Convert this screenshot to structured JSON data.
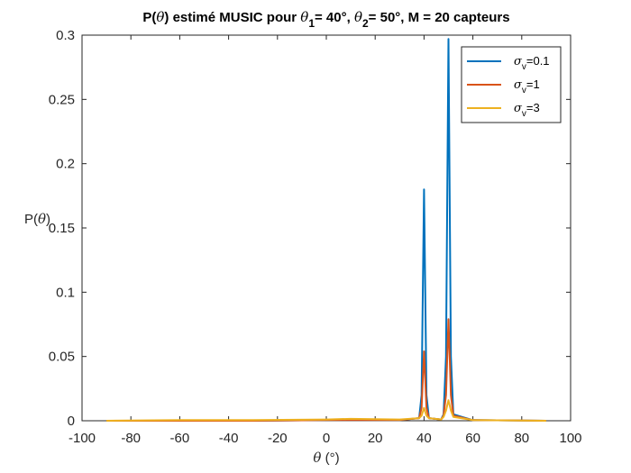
{
  "chart_data": {
    "type": "line",
    "title_parts": {
      "a": "P(",
      "b": "θ",
      "c": ") estimé MUSIC pour ",
      "d": "θ",
      "e": "1",
      "f": "= 40°, ",
      "g": "θ",
      "h": "2",
      "i": "= 50°, M = 20 capteurs"
    },
    "xlabel_parts": {
      "sym": "θ",
      "unit": " (°)"
    },
    "ylabel_parts": {
      "pre": "P(",
      "sym": "θ",
      "post": ")"
    },
    "xlim": [
      -100,
      100
    ],
    "ylim": [
      0,
      0.3
    ],
    "xticks": [
      -100,
      -80,
      -60,
      -40,
      -20,
      0,
      20,
      40,
      60,
      80,
      100
    ],
    "yticks": [
      0,
      0.05,
      0.1,
      0.15,
      0.2,
      0.25,
      0.3
    ],
    "xtick_labels": [
      "-100",
      "-80",
      "-60",
      "-40",
      "-20",
      "0",
      "20",
      "40",
      "60",
      "80",
      "100"
    ],
    "ytick_labels": [
      "0",
      "0.05",
      "0.1",
      "0.15",
      "0.2",
      "0.25",
      "0.3"
    ],
    "legend_position": "top-right",
    "grid": false,
    "series": [
      {
        "name_sym": "σ",
        "name_sub": "v",
        "name_value": "=0.1",
        "color": "#0072BD",
        "x": [
          -90,
          -60,
          -30,
          0,
          30,
          38,
          39,
          40,
          41,
          42,
          47,
          48,
          49,
          50,
          51,
          52,
          60,
          90
        ],
        "y": [
          0,
          0,
          0,
          0.0005,
          0.0005,
          0.002,
          0.02,
          0.18,
          0.02,
          0.002,
          0.001,
          0.005,
          0.05,
          0.297,
          0.05,
          0.005,
          0.0005,
          0
        ]
      },
      {
        "name_sym": "σ",
        "name_sub": "v",
        "name_value": "=1",
        "color": "#D95319",
        "x": [
          -90,
          -60,
          -30,
          0,
          30,
          38,
          39,
          40,
          41,
          42,
          47,
          48,
          49,
          50,
          51,
          52,
          60,
          90
        ],
        "y": [
          0,
          0,
          0,
          0.0005,
          0.0005,
          0.002,
          0.01,
          0.054,
          0.01,
          0.002,
          0.001,
          0.004,
          0.02,
          0.079,
          0.02,
          0.004,
          0.0005,
          0
        ]
      },
      {
        "name_sym": "σ",
        "name_sub": "v",
        "name_value": "=3",
        "color": "#EDB120",
        "x": [
          -90,
          -60,
          -30,
          0,
          10,
          30,
          38,
          39,
          40,
          41,
          42,
          47,
          48,
          49,
          50,
          51,
          52,
          60,
          90
        ],
        "y": [
          0,
          0.0005,
          0.0005,
          0.001,
          0.0015,
          0.001,
          0.002,
          0.004,
          0.01,
          0.004,
          0.002,
          0.001,
          0.003,
          0.008,
          0.016,
          0.008,
          0.003,
          0.0005,
          0
        ]
      }
    ]
  }
}
